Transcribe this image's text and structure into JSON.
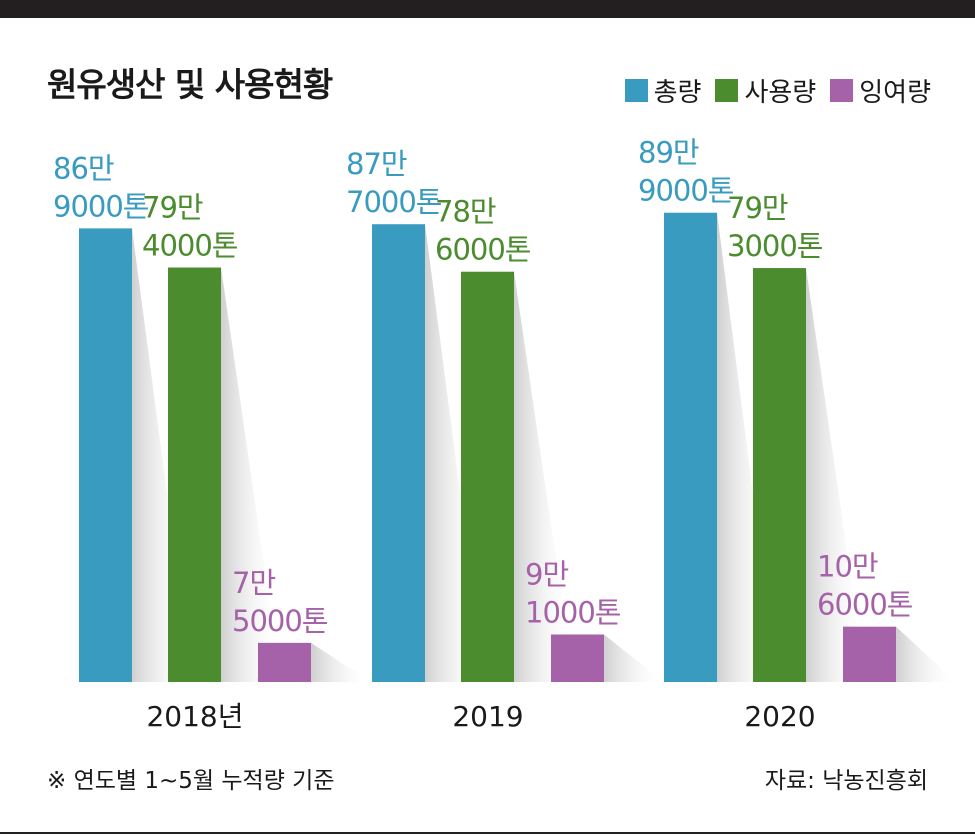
{
  "chart_data": {
    "type": "bar",
    "title": "원유생산 및 사용현황",
    "categories": [
      "2018년",
      "2019",
      "2020"
    ],
    "series": [
      {
        "name": "총량",
        "color": "#3a9bc0",
        "values": [
          869000,
          877000,
          899000
        ],
        "labels": [
          [
            "86만",
            "9000톤"
          ],
          [
            "87만",
            "7000톤"
          ],
          [
            "89만",
            "9000톤"
          ]
        ]
      },
      {
        "name": "사용량",
        "color": "#4a8c2e",
        "values": [
          794000,
          786000,
          793000
        ],
        "labels": [
          [
            "79만",
            "4000톤"
          ],
          [
            "78만",
            "6000톤"
          ],
          [
            "79만",
            "3000톤"
          ]
        ]
      },
      {
        "name": "잉여량",
        "color": "#a662a8",
        "values": [
          75000,
          91000,
          106000
        ],
        "labels": [
          [
            "7만",
            "5000톤"
          ],
          [
            "9만",
            "1000톤"
          ],
          [
            "10만",
            "6000톤"
          ]
        ]
      }
    ],
    "grid": false,
    "legend_position": "top-right"
  },
  "footnote": "※ 연도별 1~5월 누적량 기준",
  "source": "자료: 낙농진흥회"
}
